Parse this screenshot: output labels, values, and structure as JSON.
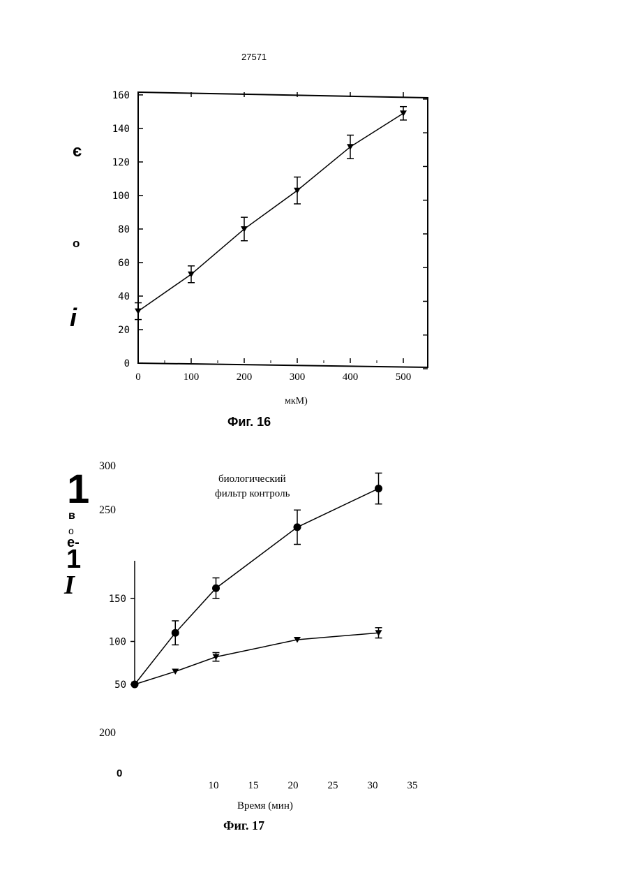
{
  "page": {
    "number": "27571"
  },
  "stray_marks": {
    "fig16_left": [
      "є",
      "о",
      "i"
    ],
    "fig17_left": [
      "1",
      "в",
      "о",
      "е-",
      "1",
      "I"
    ]
  },
  "chart_data": [
    {
      "type": "line",
      "caption": "Фиг. 16",
      "xlabel": "мкМ)",
      "ylabel": "",
      "x_ticks": [
        "0",
        "100",
        "200",
        "300",
        "400",
        "500"
      ],
      "y_ticks": [
        "0",
        "20",
        "40",
        "60",
        "80",
        "100",
        "120",
        "140",
        "160"
      ],
      "xlim": [
        0,
        520
      ],
      "ylim": [
        0,
        160
      ],
      "grid": false,
      "series": [
        {
          "marker": "triangle-down",
          "x": [
            0,
            100,
            200,
            300,
            400,
            500
          ],
          "y": [
            31,
            53,
            80,
            103,
            129,
            149
          ],
          "error": [
            5,
            5,
            7,
            8,
            7,
            4
          ]
        }
      ]
    },
    {
      "type": "line",
      "caption": "Фиг. 17",
      "xlabel": "Время (мин)",
      "ylabel": "",
      "x_ticks": [
        "10",
        "15",
        "20",
        "25",
        "30",
        "35"
      ],
      "y_ticks_outside": [
        "300",
        "250",
        "200",
        "0"
      ],
      "y_ticks_inside": [
        "150",
        "100",
        "50"
      ],
      "legend": [
        "биологический",
        "фильтр  контроль"
      ],
      "grid": false,
      "series": [
        {
          "marker": "circle",
          "x": [
            0,
            5,
            10,
            20,
            30
          ],
          "y": [
            50,
            110,
            162,
            233,
            278
          ],
          "error": [
            0,
            14,
            12,
            20,
            18
          ]
        },
        {
          "marker": "triangle-down",
          "x": [
            0,
            5,
            10,
            20,
            30
          ],
          "y": [
            50,
            65,
            82,
            102,
            110
          ],
          "error": [
            0,
            0,
            5,
            0,
            6
          ]
        }
      ]
    }
  ]
}
